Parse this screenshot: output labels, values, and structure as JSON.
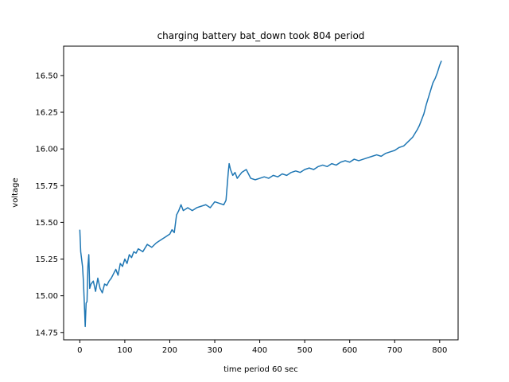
{
  "chart_data": {
    "type": "line",
    "title": "charging battery bat_down took 804 period",
    "xlabel": "time period 60 sec",
    "ylabel": "voltage",
    "xlim": [
      -36,
      841
    ],
    "ylim": [
      14.7,
      16.7
    ],
    "grid": false,
    "xticks": [
      0,
      100,
      200,
      300,
      400,
      500,
      600,
      700,
      800
    ],
    "yticks": [
      14.75,
      15.0,
      15.25,
      15.5,
      15.75,
      16.0,
      16.25,
      16.5
    ],
    "ytick_labels": [
      "14.75",
      "15.00",
      "15.25",
      "15.50",
      "15.75",
      "16.00",
      "16.25",
      "16.50"
    ],
    "series": [
      {
        "color": "#1f77b4",
        "x": [
          0,
          2,
          4,
          6,
          8,
          10,
          12,
          14,
          16,
          18,
          20,
          22,
          25,
          30,
          35,
          40,
          45,
          50,
          55,
          60,
          65,
          70,
          75,
          80,
          85,
          90,
          95,
          100,
          105,
          110,
          115,
          120,
          125,
          130,
          140,
          150,
          160,
          170,
          180,
          190,
          200,
          205,
          210,
          215,
          220,
          225,
          230,
          240,
          250,
          260,
          270,
          280,
          290,
          300,
          310,
          320,
          325,
          330,
          332,
          335,
          340,
          345,
          350,
          360,
          370,
          380,
          390,
          400,
          410,
          420,
          430,
          440,
          450,
          460,
          470,
          480,
          490,
          500,
          510,
          520,
          530,
          540,
          550,
          560,
          570,
          580,
          590,
          600,
          610,
          620,
          630,
          640,
          650,
          660,
          670,
          680,
          690,
          700,
          710,
          720,
          730,
          740,
          750,
          755,
          760,
          765,
          770,
          775,
          780,
          785,
          790,
          795,
          800,
          804
        ],
        "y": [
          15.45,
          15.3,
          15.25,
          15.2,
          15.1,
          14.95,
          14.79,
          14.95,
          14.96,
          15.2,
          15.28,
          15.05,
          15.08,
          15.1,
          15.03,
          15.12,
          15.05,
          15.02,
          15.08,
          15.07,
          15.1,
          15.12,
          15.15,
          15.18,
          15.14,
          15.22,
          15.2,
          15.25,
          15.22,
          15.28,
          15.26,
          15.3,
          15.29,
          15.32,
          15.3,
          15.35,
          15.33,
          15.36,
          15.38,
          15.4,
          15.42,
          15.45,
          15.43,
          15.55,
          15.58,
          15.62,
          15.58,
          15.6,
          15.58,
          15.6,
          15.61,
          15.62,
          15.6,
          15.64,
          15.63,
          15.62,
          15.65,
          15.84,
          15.9,
          15.86,
          15.82,
          15.84,
          15.8,
          15.84,
          15.86,
          15.8,
          15.79,
          15.8,
          15.81,
          15.8,
          15.82,
          15.81,
          15.83,
          15.82,
          15.84,
          15.85,
          15.84,
          15.86,
          15.87,
          15.86,
          15.88,
          15.89,
          15.88,
          15.9,
          15.89,
          15.91,
          15.92,
          15.91,
          15.93,
          15.92,
          15.93,
          15.94,
          15.95,
          15.96,
          15.95,
          15.97,
          15.98,
          15.99,
          16.01,
          16.02,
          16.05,
          16.08,
          16.13,
          16.16,
          16.2,
          16.24,
          16.3,
          16.35,
          16.4,
          16.45,
          16.48,
          16.52,
          16.57,
          16.6
        ]
      }
    ]
  }
}
